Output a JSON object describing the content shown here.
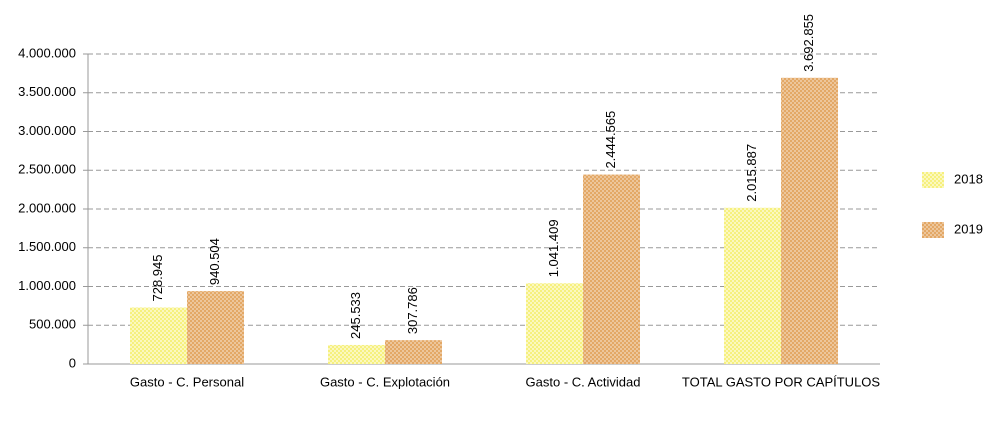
{
  "chart_data": {
    "type": "bar",
    "categories": [
      "Gasto - C. Personal",
      "Gasto - C. Explotación",
      "Gasto - C. Actividad",
      "TOTAL GASTO POR CAPÍTULOS"
    ],
    "series": [
      {
        "name": "2018",
        "color": "#f6f07e",
        "values": [
          728945,
          245533,
          1041409,
          2015887
        ],
        "value_labels": [
          "728.945",
          "245.533",
          "1.041.409",
          "2.015.887"
        ]
      },
      {
        "name": "2019",
        "color": "#e3a866",
        "values": [
          940504,
          307786,
          2444565,
          3692855
        ],
        "value_labels": [
          "940.504",
          "307.786",
          "2.444.565",
          "3.692.855"
        ]
      }
    ],
    "ylim": [
      0,
      4000000
    ],
    "yticks": [
      0,
      {
        "value": 500000,
        "label": "500.000"
      },
      {
        "value": 1000000,
        "label": "1.000.000"
      },
      {
        "value": 1500000,
        "label": "1.500.000"
      },
      {
        "value": 2000000,
        "label": "2.000.000"
      },
      {
        "value": 2500000,
        "label": "2.500.000"
      },
      {
        "value": 3000000,
        "label": "3.000.000"
      },
      {
        "value": 3500000,
        "label": "3.500.000"
      },
      {
        "value": 4000000,
        "label": "4.000.000"
      }
    ],
    "grid": true,
    "legend": "right"
  }
}
